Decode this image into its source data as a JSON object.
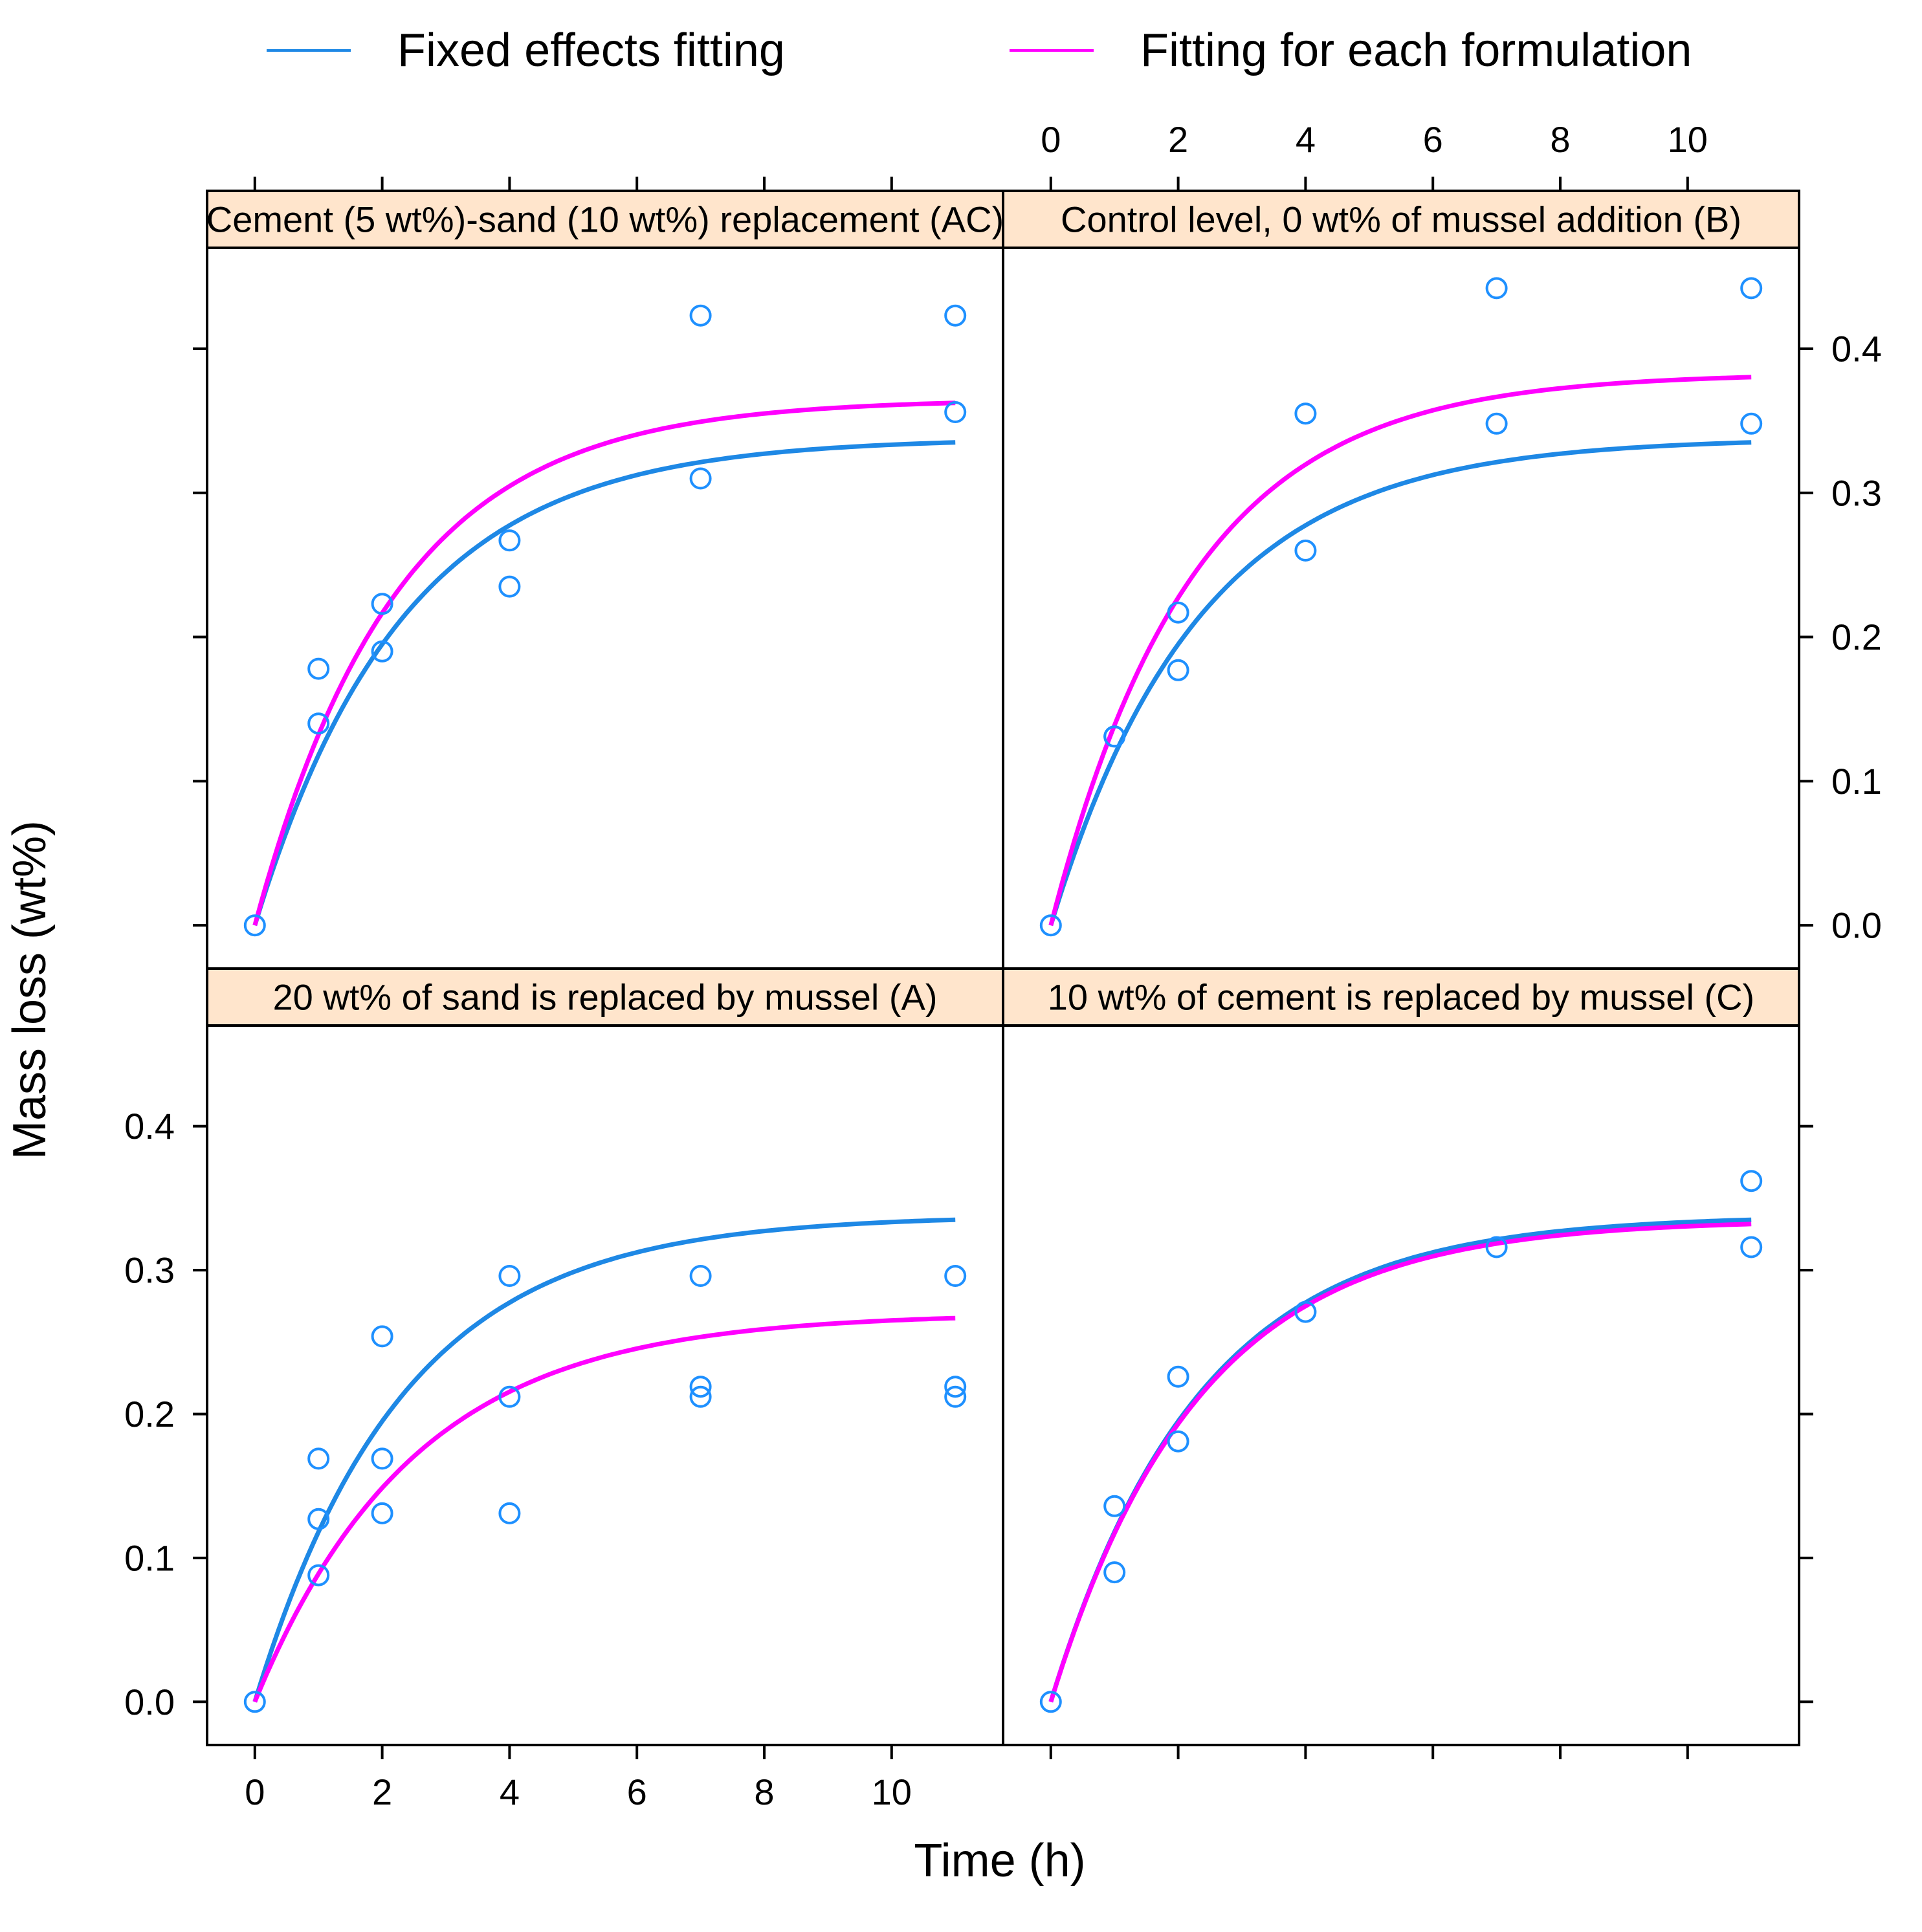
{
  "chart_data": {
    "type": "scatter",
    "layout": "lattice 2x2",
    "xlabel": "Time (h)",
    "ylabel": "Mass loss (wt%)",
    "xlim": [
      -0.75,
      11.75
    ],
    "ylim": [
      -0.03,
      0.47
    ],
    "x_ticks": [
      0,
      2,
      4,
      6,
      8,
      10
    ],
    "y_ticks": [
      0.0,
      0.1,
      0.2,
      0.3,
      0.4
    ],
    "x_tick_labels": [
      "0",
      "2",
      "4",
      "6",
      "8",
      "10"
    ],
    "y_tick_labels": [
      "0.0",
      "0.1",
      "0.2",
      "0.3",
      "0.4"
    ],
    "legend": [
      {
        "label": "Fixed effects fitting",
        "color": "#1e88e5"
      },
      {
        "label": "Fitting for each formulation",
        "color": "#ff00ff"
      }
    ],
    "colors": {
      "points": "#1e90ff",
      "fixed": "#1e88e5",
      "each": "#ff00ff",
      "strip": "#ffe5cc"
    },
    "fixed_effects_curve": {
      "model": "asymptotic",
      "asymptote": 0.338,
      "rate": 0.43,
      "x_max": 11
    },
    "panels": [
      {
        "title": "Cement (5 wt%)-sand (10 wt%) replacement (AC)",
        "row": "top",
        "col": "left",
        "points": [
          [
            0,
            0.0
          ],
          [
            1,
            0.14
          ],
          [
            1,
            0.178
          ],
          [
            2,
            0.19
          ],
          [
            2,
            0.223
          ],
          [
            4,
            0.235
          ],
          [
            4,
            0.267
          ],
          [
            7,
            0.31
          ],
          [
            7,
            0.423
          ],
          [
            11,
            0.356
          ],
          [
            11,
            0.423
          ]
        ],
        "each_curve": {
          "asymptote": 0.365,
          "rate": 0.45
        }
      },
      {
        "title": "Control level, 0 wt% of mussel addition (B)",
        "row": "top",
        "col": "right",
        "points": [
          [
            0,
            0.0
          ],
          [
            1,
            0.131
          ],
          [
            1,
            0.131
          ],
          [
            2,
            0.177
          ],
          [
            2,
            0.217
          ],
          [
            4,
            0.26
          ],
          [
            4,
            0.355
          ],
          [
            7,
            0.348
          ],
          [
            7,
            0.442
          ],
          [
            11,
            0.348
          ],
          [
            11,
            0.442
          ]
        ],
        "each_curve": {
          "asymptote": 0.383,
          "rate": 0.45
        }
      },
      {
        "title": "20 wt% of sand is replaced by mussel (A)",
        "row": "bottom",
        "col": "left",
        "points": [
          [
            0,
            0.0
          ],
          [
            1,
            0.088
          ],
          [
            1,
            0.127
          ],
          [
            1,
            0.169
          ],
          [
            2,
            0.131
          ],
          [
            2,
            0.169
          ],
          [
            2,
            0.254
          ],
          [
            4,
            0.131
          ],
          [
            4,
            0.212
          ],
          [
            4,
            0.296
          ],
          [
            7,
            0.212
          ],
          [
            7,
            0.219
          ],
          [
            7,
            0.296
          ],
          [
            11,
            0.212
          ],
          [
            11,
            0.219
          ],
          [
            11,
            0.296
          ]
        ],
        "each_curve": {
          "asymptote": 0.27,
          "rate": 0.4
        }
      },
      {
        "title": "10 wt% of cement is replaced by mussel (C)",
        "row": "bottom",
        "col": "right",
        "points": [
          [
            0,
            0.0
          ],
          [
            1,
            0.09
          ],
          [
            1,
            0.136
          ],
          [
            2,
            0.181
          ],
          [
            2,
            0.226
          ],
          [
            4,
            0.271
          ],
          [
            7,
            0.316
          ],
          [
            11,
            0.316
          ],
          [
            11,
            0.362
          ]
        ],
        "each_curve": {
          "asymptote": 0.335,
          "rate": 0.43
        }
      }
    ]
  }
}
